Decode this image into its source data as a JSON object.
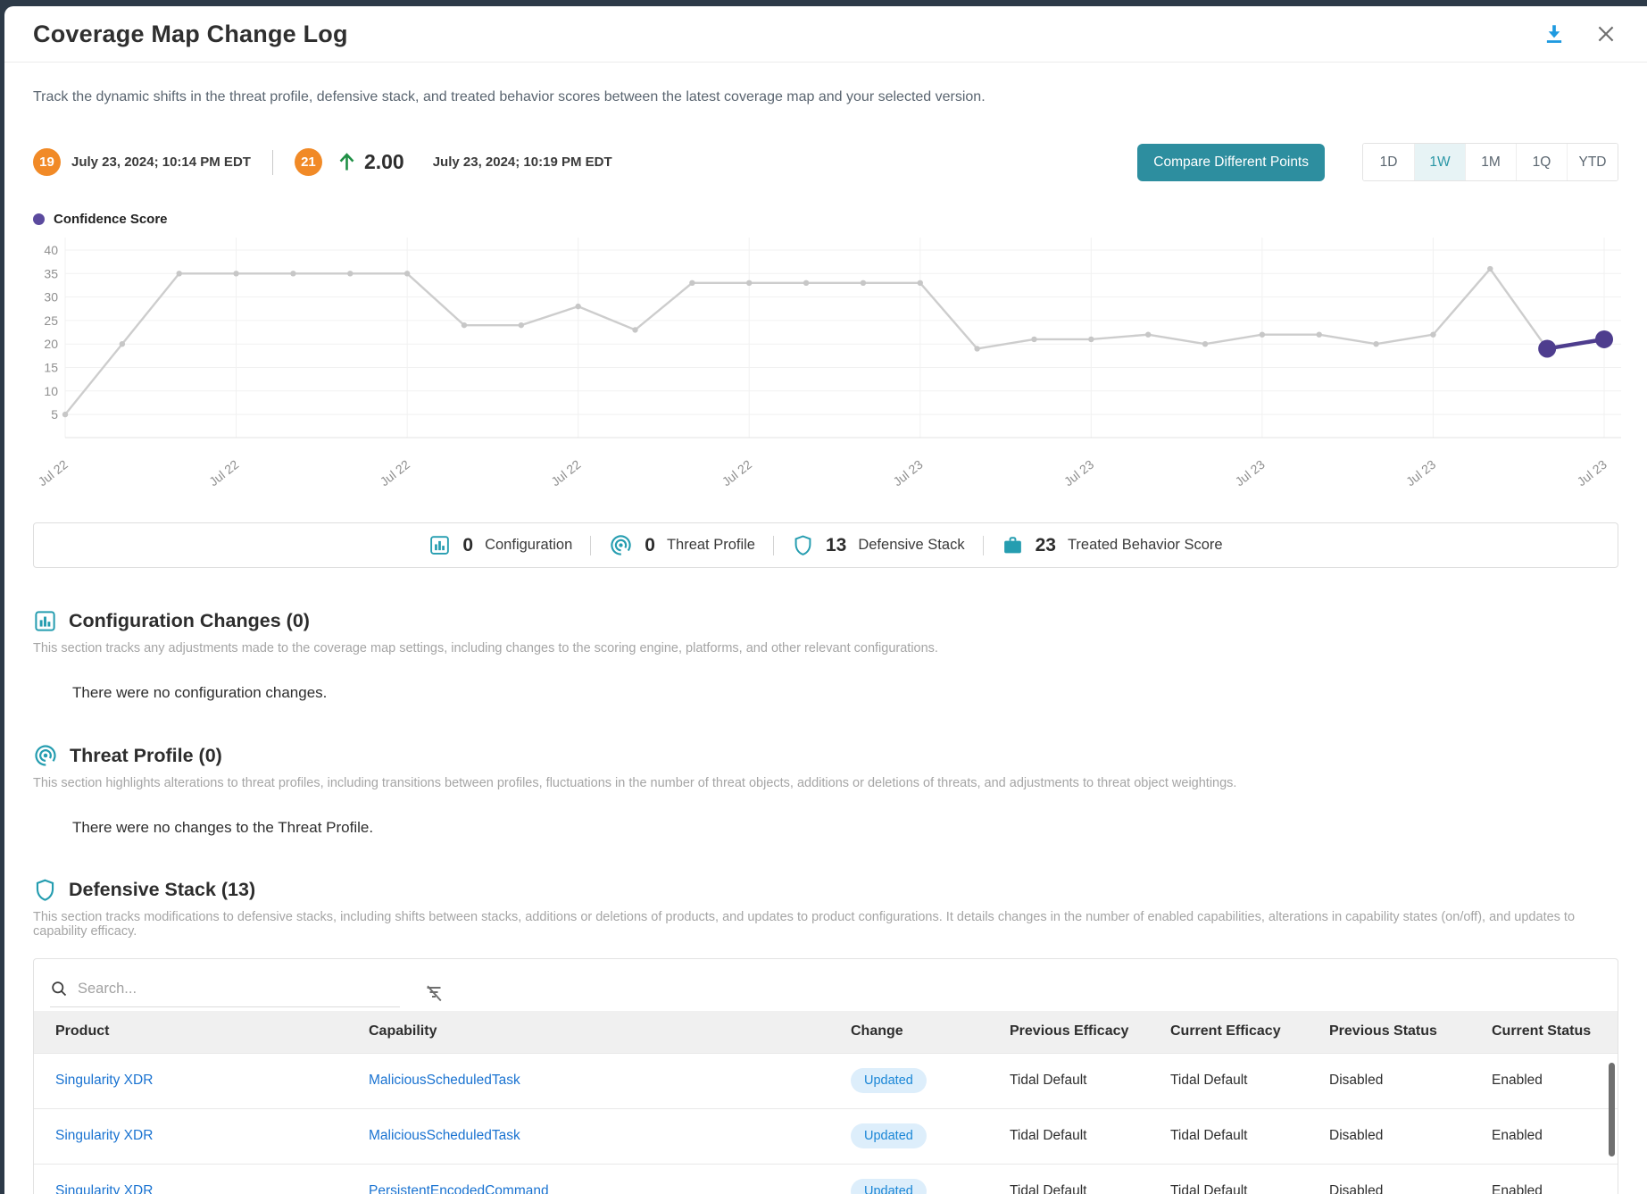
{
  "header": {
    "title": "Coverage Map Change Log"
  },
  "intro": "Track the dynamic shifts in the threat profile, defensive stack, and treated behavior scores between the latest coverage map and your selected version.",
  "comparison": {
    "from": {
      "badge": "19",
      "date": "July 23, 2024; 10:14 PM EDT"
    },
    "to": {
      "badge": "21",
      "delta": "2.00",
      "date": "July 23, 2024; 10:19 PM EDT"
    }
  },
  "controls": {
    "compare_button": "Compare Different Points",
    "ranges": [
      "1D",
      "1W",
      "1M",
      "1Q",
      "YTD"
    ],
    "active_range": "1W"
  },
  "chart_data": {
    "type": "line",
    "legend": "Confidence Score",
    "series": [
      {
        "name": "Confidence Score",
        "values": [
          5,
          20,
          35,
          35,
          35,
          35,
          35,
          24,
          24,
          28,
          23,
          33,
          33,
          33,
          33,
          33,
          19,
          21,
          21,
          22,
          20,
          22,
          22,
          20,
          22,
          36,
          19,
          21
        ]
      }
    ],
    "x_tick_every": 3,
    "x_tick_labels": [
      "Jul 22",
      "Jul 22",
      "Jul 22",
      "Jul 22",
      "Jul 22",
      "Jul 23",
      "Jul 23",
      "Jul 23",
      "Jul 23",
      "Jul 23"
    ],
    "y_ticks": [
      5,
      10,
      15,
      20,
      25,
      30,
      35,
      40
    ],
    "ylim": [
      0,
      42
    ],
    "grid": true,
    "legend_position": "top-left",
    "highlighted_last_n": 2,
    "highlight_values": [
      19,
      21
    ],
    "line_color": "#cdcdcd",
    "highlight_color": "#4e3d8e"
  },
  "summary": {
    "items": [
      {
        "icon": "bar-chart-icon",
        "value": "0",
        "label": "Configuration"
      },
      {
        "icon": "threat-profile-icon",
        "value": "0",
        "label": "Threat Profile"
      },
      {
        "icon": "shield-icon",
        "value": "13",
        "label": "Defensive Stack"
      },
      {
        "icon": "briefcase-icon",
        "value": "23",
        "label": "Treated Behavior Score"
      }
    ]
  },
  "sections": {
    "configuration": {
      "title": "Configuration Changes (0)",
      "description": "This section tracks any adjustments made to the coverage map settings, including changes to the scoring engine, platforms, and other relevant configurations.",
      "empty": "There were no configuration changes."
    },
    "threat_profile": {
      "title": "Threat Profile (0)",
      "description": "This section highlights alterations to threat profiles, including transitions between profiles, fluctuations in the number of threat objects, additions or deletions of threats, and adjustments to threat object weightings.",
      "empty": "There were no changes to the Threat Profile."
    },
    "defensive_stack": {
      "title": "Defensive Stack (13)",
      "description": "This section tracks modifications to defensive stacks, including shifts between stacks, additions or deletions of products, and updates to product configurations. It details changes in the number of enabled capabilities, alterations in capability states (on/off), and updates to capability efficacy."
    }
  },
  "table": {
    "search_placeholder": "Search...",
    "columns": [
      "Product",
      "Capability",
      "Change",
      "Previous Efficacy",
      "Current Efficacy",
      "Previous Status",
      "Current Status"
    ],
    "rows": [
      {
        "product": "Singularity XDR",
        "capability": "MaliciousScheduledTask",
        "change": "Updated",
        "prev_efficacy": "Tidal Default",
        "cur_efficacy": "Tidal Default",
        "prev_status": "Disabled",
        "cur_status": "Enabled"
      },
      {
        "product": "Singularity XDR",
        "capability": "MaliciousScheduledTask",
        "change": "Updated",
        "prev_efficacy": "Tidal Default",
        "cur_efficacy": "Tidal Default",
        "prev_status": "Disabled",
        "cur_status": "Enabled"
      },
      {
        "product": "Singularity XDR",
        "capability": "PersistentEncodedCommand",
        "change": "Updated",
        "prev_efficacy": "Tidal Default",
        "cur_efficacy": "Tidal Default",
        "prev_status": "Disabled",
        "cur_status": "Enabled"
      }
    ]
  },
  "colors": {
    "accent_teal": "#2d8e9f",
    "icon_teal": "#259db0",
    "badge_orange": "#f18a27",
    "delta_green": "#1f8f45",
    "link_blue": "#1a73d1",
    "highlight_purple": "#4e3d8e",
    "download_blue": "#1e9ae0",
    "updated_pill_bg": "#ddeefb",
    "updated_pill_text": "#1a86d6"
  }
}
